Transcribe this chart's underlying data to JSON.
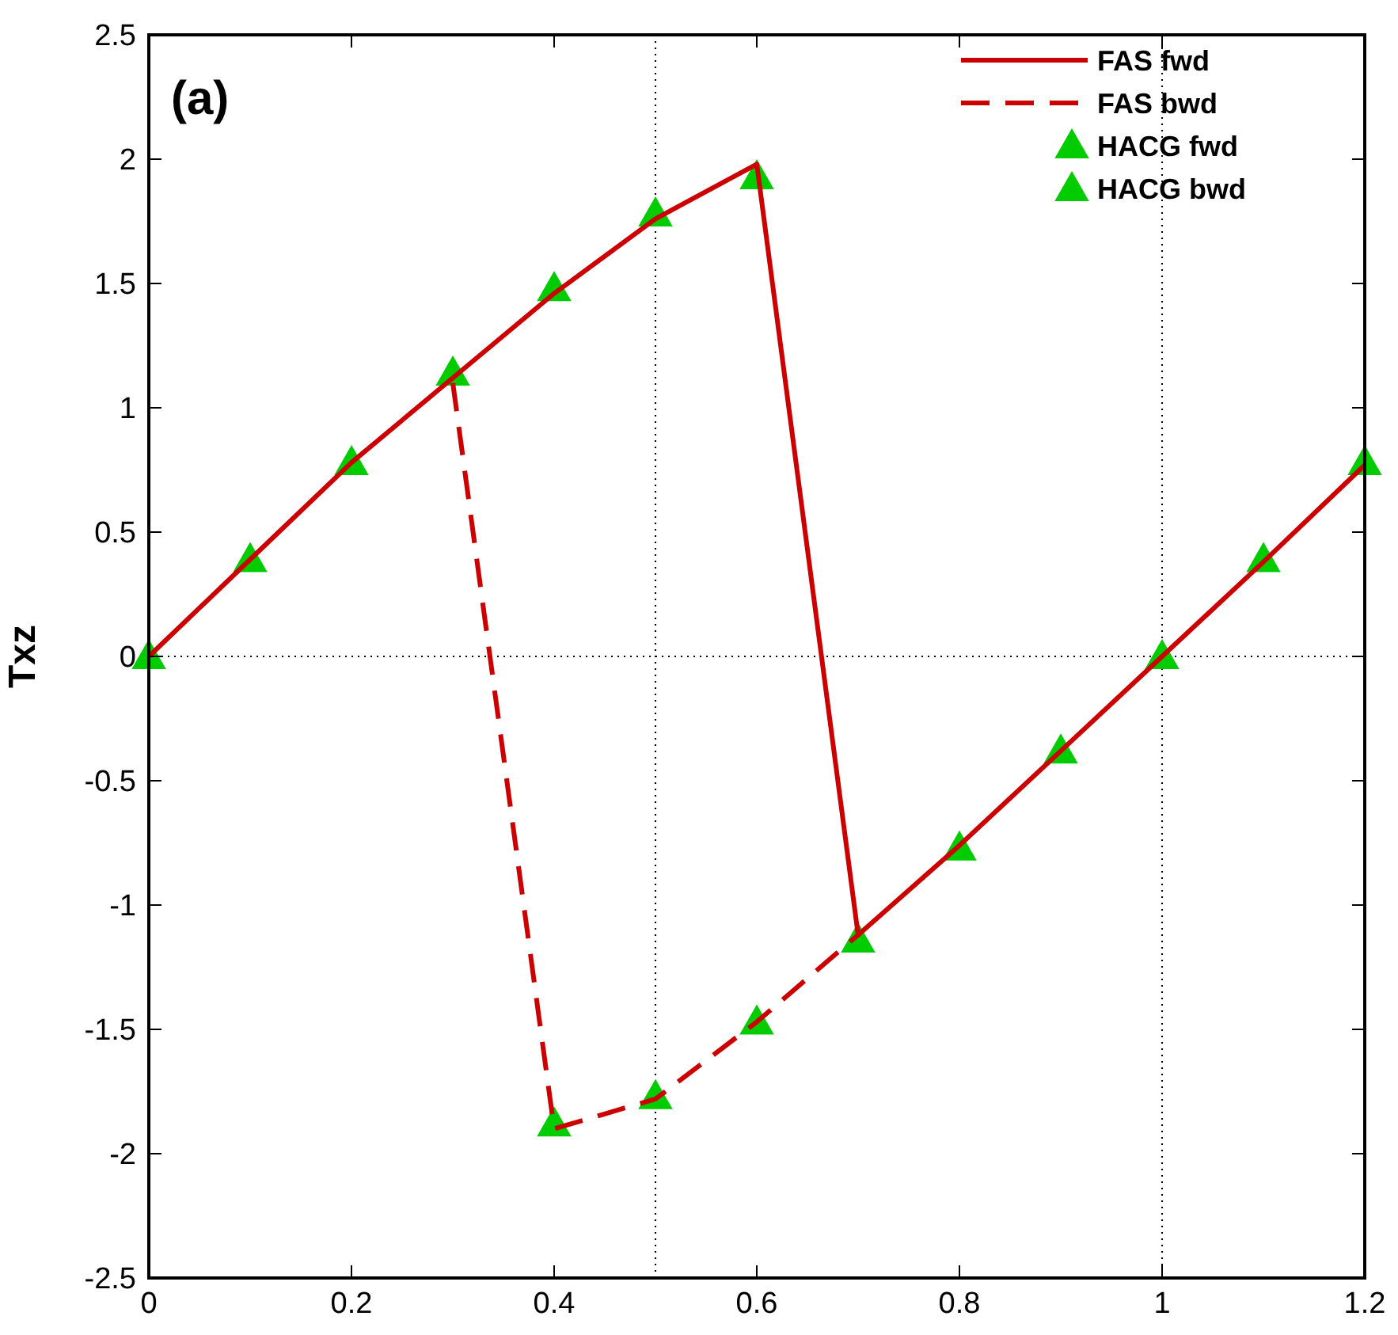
{
  "chart_data": {
    "type": "line",
    "ylabel": "Txz",
    "annotations": [
      "(a)"
    ],
    "xlim": [
      0,
      1.2
    ],
    "xticks": [
      0,
      0.2,
      0.4,
      0.6,
      0.8,
      1,
      1.2
    ],
    "ylim": [
      -2.5,
      2.5
    ],
    "yticks": [
      -2.5,
      -2,
      -1.5,
      -1,
      -0.5,
      0,
      0.5,
      1,
      1.5,
      2,
      2.5
    ],
    "grid": false,
    "legend": "top right",
    "ref_lines": [
      {
        "axis": "x",
        "value": 0.5,
        "color": "#000000",
        "line_style": "dotted"
      },
      {
        "axis": "x",
        "value": 1,
        "color": "#000000",
        "line_style": "dotted"
      },
      {
        "axis": "y",
        "value": 0,
        "color": "#000000",
        "line_style": "dotted"
      }
    ],
    "series": [
      {
        "name": "FAS fwd",
        "color": "#cc0000",
        "line_style": "solid",
        "marker": "none",
        "x": [
          0,
          0.1,
          0.2,
          0.3,
          0.4,
          0.5,
          0.6,
          0.7,
          0.8,
          0.9,
          1,
          1.1,
          1.2
        ],
        "values": [
          0,
          0.39,
          0.78,
          1.12,
          1.46,
          1.76,
          1.98,
          -1.12,
          -0.76,
          -0.38,
          0,
          0.38,
          0.77
        ]
      },
      {
        "name": "FAS bwd",
        "color": "#cc0000",
        "line_style": "dashed",
        "marker": "none",
        "x": [
          0.3,
          0.4,
          0.5,
          0.6,
          0.7
        ],
        "values": [
          1.1,
          -1.9,
          -1.78,
          -1.47,
          -1.12
        ]
      },
      {
        "name": "HACG fwd",
        "type": "scatter",
        "color": "#00cc00",
        "marker": "triangle",
        "x": [
          0,
          0.1,
          0.2,
          0.3,
          0.4,
          0.5,
          0.6,
          0.7,
          0.8,
          0.9,
          1,
          1.1,
          1.2
        ],
        "values": [
          0,
          0.39,
          0.78,
          1.14,
          1.48,
          1.78,
          1.93,
          -1.14,
          -0.77,
          -0.38,
          0,
          0.39,
          0.78
        ]
      },
      {
        "name": "HACG bwd",
        "type": "scatter",
        "color": "#00cc00",
        "marker": "triangle",
        "x": [
          0.4,
          0.5,
          0.6
        ],
        "values": [
          -1.88,
          -1.77,
          -1.47
        ]
      }
    ]
  }
}
